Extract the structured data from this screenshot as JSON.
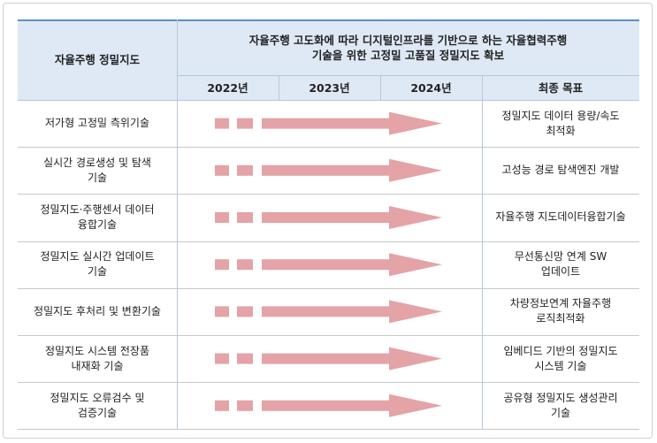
{
  "header": {
    "corner": "자율주행 정밀지도",
    "title_lines": [
      "자율주행 고도화에 따라 디지털인프라를 기반으로 하는 자율협력주행",
      "기술을 위한 고정밀 고품질 정밀지도 확보"
    ],
    "years": [
      "2022년",
      "2023년",
      "2024년"
    ],
    "goal": "최종 목표"
  },
  "rows": [
    {
      "item": [
        "저가형 고정밀 측위기술"
      ],
      "goal": [
        "정밀지도 데이터 용량/속도",
        "최적화"
      ]
    },
    {
      "item": [
        "실시간 경로생성 및 탐색",
        "기술"
      ],
      "goal": [
        "고성능 경로 탐색엔진 개발"
      ]
    },
    {
      "item": [
        "정밀지도·주행센서 데이터",
        "융합기술"
      ],
      "goal": [
        "자율주행 지도데이터융합기술"
      ]
    },
    {
      "item": [
        "정밀지도 실시간 업데이트",
        "기술"
      ],
      "goal": [
        "무선통신망 연계 SW",
        "업데이트"
      ]
    },
    {
      "item": [
        "정밀지도 후처리 및 변환기술"
      ],
      "goal": [
        "차량정보연계 자율주행",
        "로직최적화"
      ]
    },
    {
      "item": [
        "정밀지도 시스템 전장품",
        "내재화 기술"
      ],
      "goal": [
        "임베디드 기반의 정밀지도",
        "시스템 기술"
      ]
    },
    {
      "item": [
        "정밀지도 오류검수 및",
        "검증기술"
      ],
      "goal": [
        "공유형 정밀지도 생성관리",
        "기술"
      ]
    }
  ]
}
